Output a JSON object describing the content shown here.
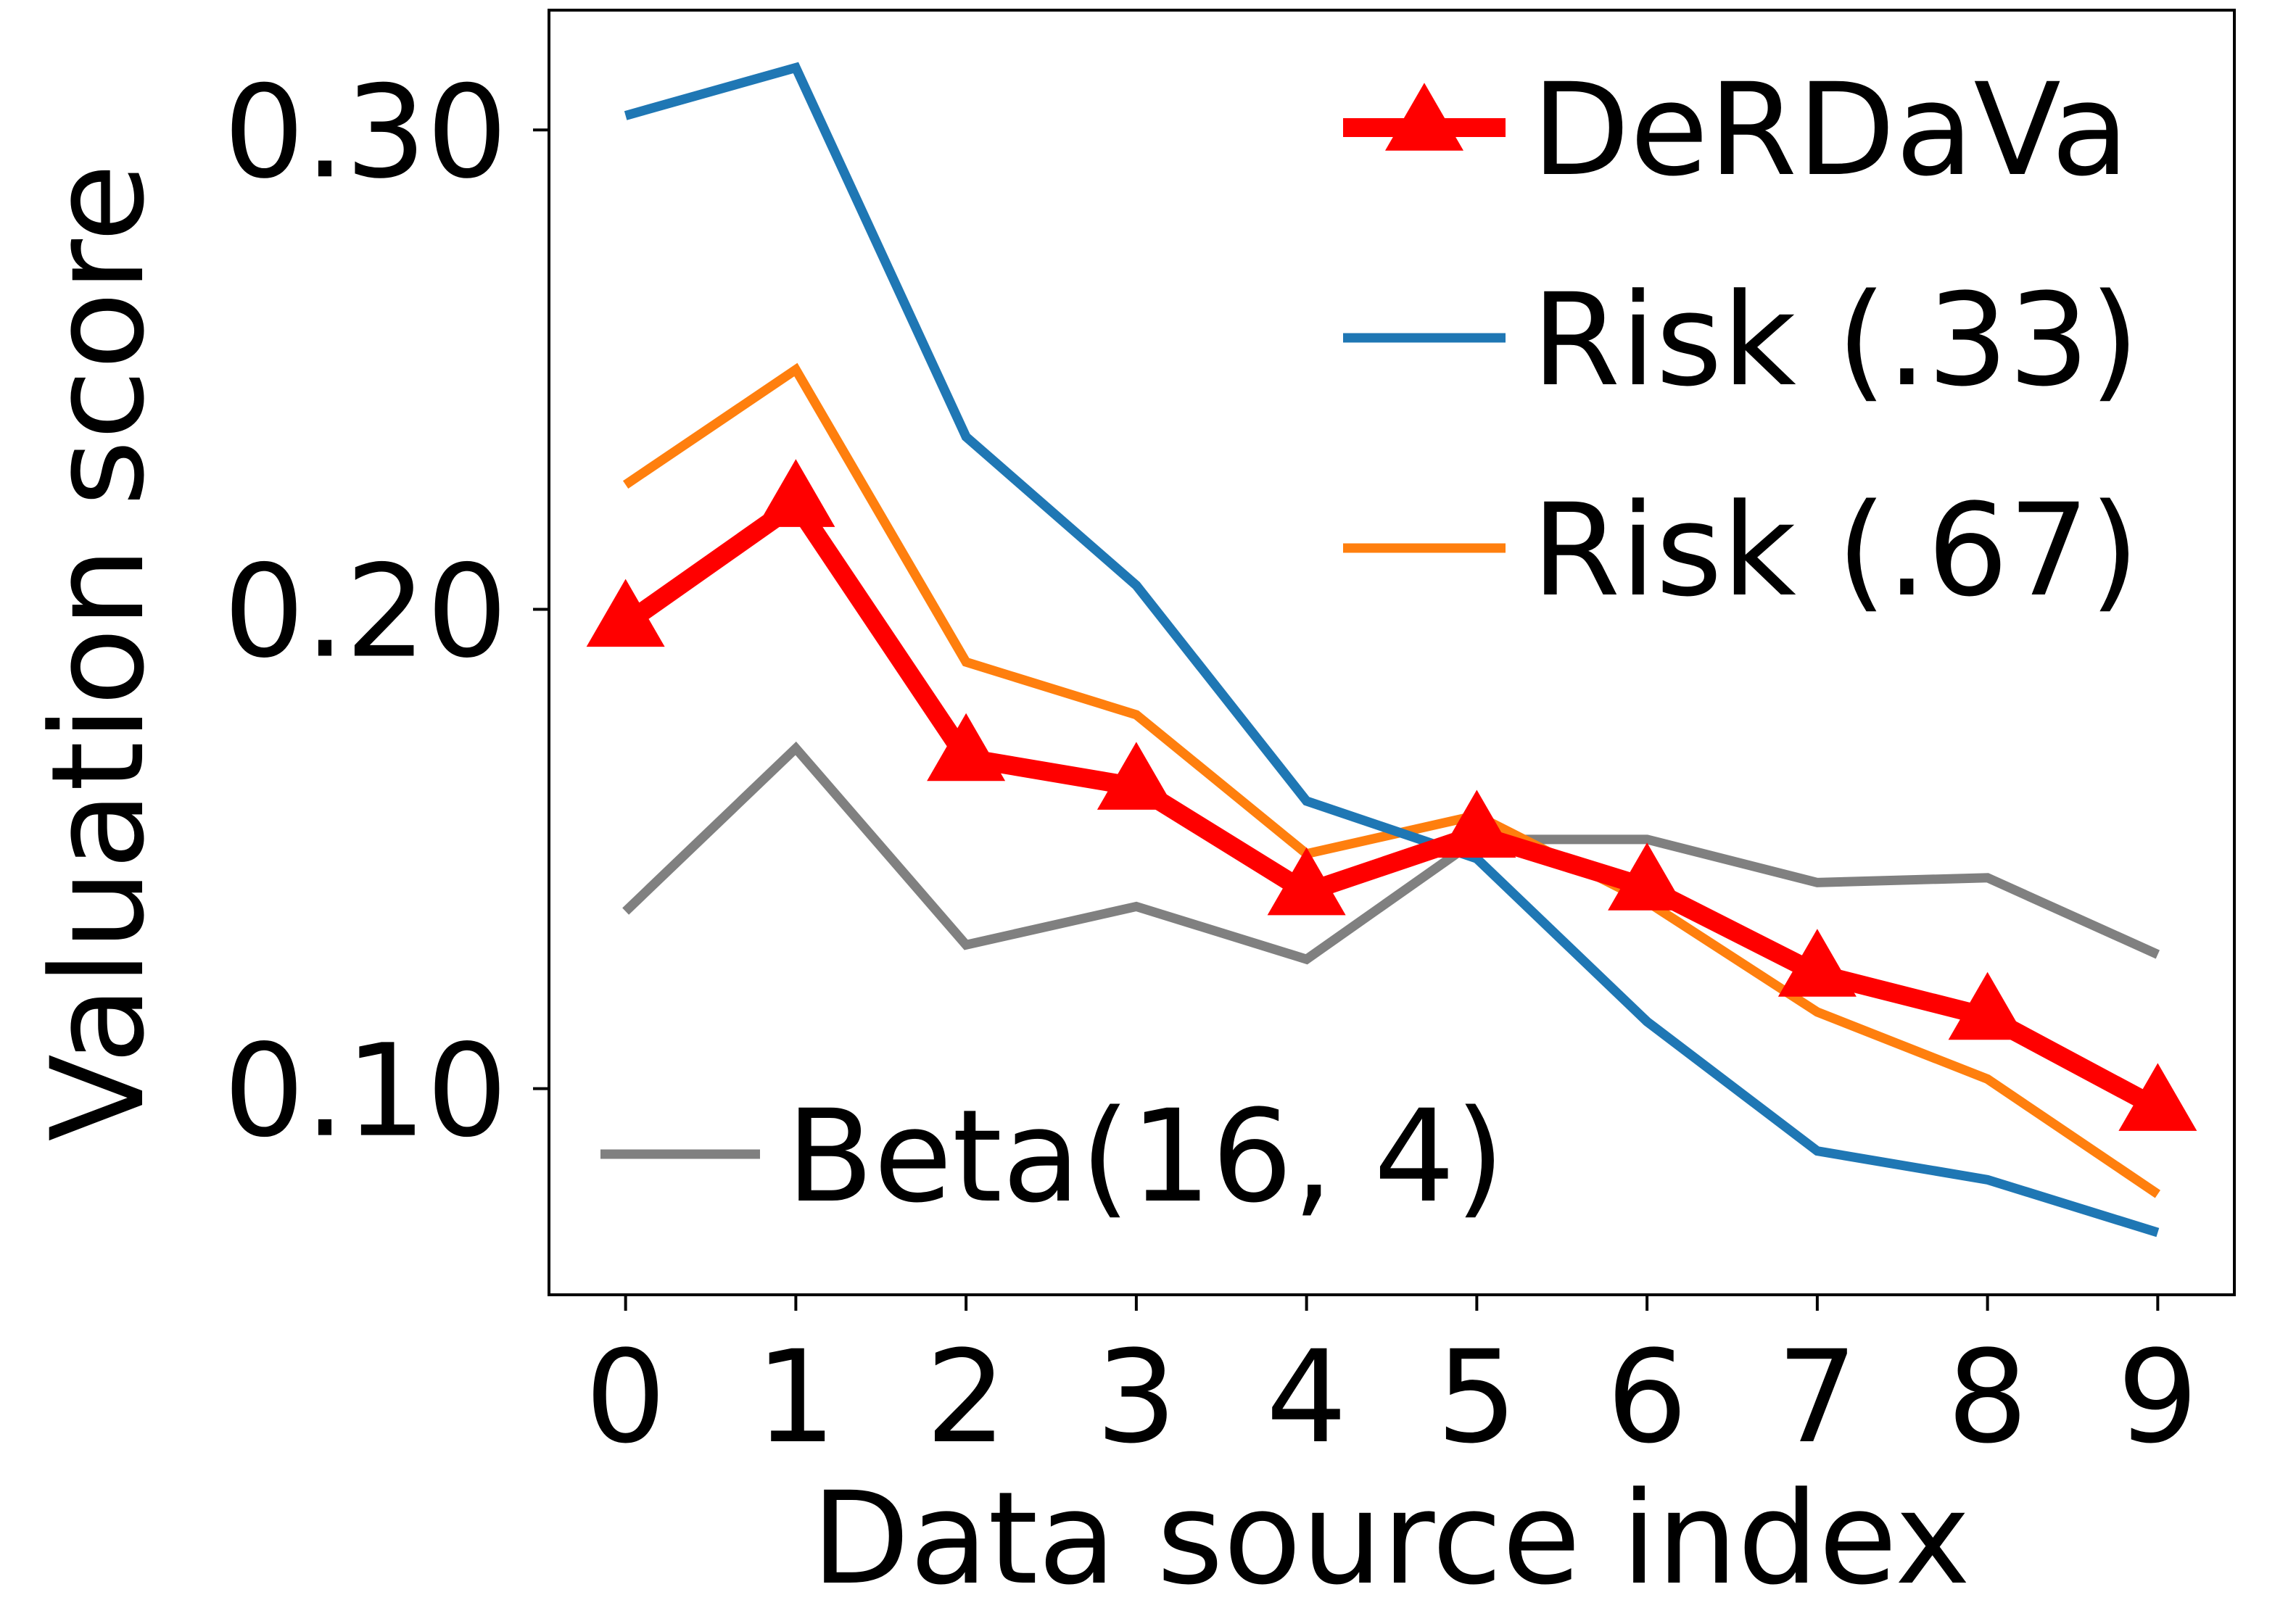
{
  "chart_data": {
    "type": "line",
    "title": "",
    "xlabel": "Data source index",
    "ylabel": "Valuation score",
    "x": [
      0,
      1,
      2,
      3,
      4,
      5,
      6,
      7,
      8,
      9
    ],
    "xticks": [
      "0",
      "1",
      "2",
      "3",
      "4",
      "5",
      "6",
      "7",
      "8",
      "9"
    ],
    "xlim": [
      -0.45,
      9.45
    ],
    "ylim": [
      0.057,
      0.325
    ],
    "yticks": [
      {
        "value": 0.1,
        "label": "0.10"
      },
      {
        "value": 0.2,
        "label": "0.20"
      },
      {
        "value": 0.3,
        "label": "0.30"
      }
    ],
    "grid": false,
    "series": [
      {
        "name": "Beta(16, 4)",
        "color": "#808080",
        "marker": "none",
        "values": [
          0.137,
          0.171,
          0.13,
          0.138,
          0.127,
          0.152,
          0.152,
          0.143,
          0.144,
          0.128
        ]
      },
      {
        "name": "Risk (.67)",
        "color": "#ff7f0e",
        "marker": "none",
        "values": [
          0.226,
          0.25,
          0.189,
          0.178,
          0.149,
          0.157,
          0.139,
          0.116,
          0.102,
          0.078
        ]
      },
      {
        "name": "Risk (.33)",
        "color": "#1f77b4",
        "marker": "none",
        "values": [
          0.303,
          0.313,
          0.236,
          0.205,
          0.16,
          0.148,
          0.114,
          0.087,
          0.081,
          0.07
        ]
      },
      {
        "name": "DeRDaVa",
        "color": "#ff0000",
        "marker": "triangle",
        "values": [
          0.197,
          0.222,
          0.169,
          0.163,
          0.141,
          0.153,
          0.142,
          0.124,
          0.115,
          0.096
        ]
      }
    ],
    "legends": [
      {
        "placement": "upper-right",
        "entries": [
          "DeRDaVa",
          "Risk (.33)",
          "Risk (.67)"
        ]
      },
      {
        "placement": "lower-left",
        "entries": [
          "Beta(16, 4)"
        ]
      }
    ]
  }
}
